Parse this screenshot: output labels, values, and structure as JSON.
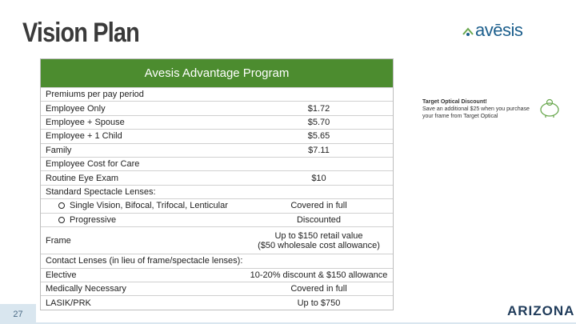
{
  "header": {
    "title": "Vision Plan",
    "logo": "avēsis"
  },
  "table": {
    "title": "Avesis Advantage Program",
    "rows": [
      {
        "label": "Premiums per pay period"
      },
      {
        "label": "Employee Only",
        "value": [
          "$1.72"
        ]
      },
      {
        "label": "Employee + Spouse",
        "value": [
          "$5.70"
        ]
      },
      {
        "label": "Employee + 1 Child",
        "value": [
          "$5.65"
        ]
      },
      {
        "label": "Family",
        "value": [
          "$7.11"
        ]
      },
      {
        "label": "Employee Cost for Care"
      },
      {
        "label": "Routine Eye Exam",
        "value": [
          "$10"
        ]
      },
      {
        "label": "Standard Spectacle Lenses:"
      },
      {
        "label": "Single Vision, Bifocal, Trifocal, Lenticular",
        "value": [
          "Covered in full"
        ],
        "bullet": true
      },
      {
        "label": "Progressive",
        "value": [
          "Discounted"
        ],
        "bullet": true
      },
      {
        "label": "Frame",
        "value": [
          "Up to $150 retail value",
          "($50 wholesale cost allowance)"
        ]
      },
      {
        "label": "Contact Lenses (in lieu of frame/spectacle lenses):"
      },
      {
        "label": "Elective",
        "value": [
          "10-20% discount & $150 allowance"
        ]
      },
      {
        "label": "Medically Necessary",
        "value": [
          "Covered in full"
        ]
      },
      {
        "label": "LASIK/PRK",
        "value": [
          "Up to $750"
        ]
      }
    ]
  },
  "note": {
    "heading": "Target Optical Discount!",
    "text": "Save an additional $25 when you purchase your frame from Target Optical"
  },
  "footer": {
    "page": "27",
    "logo": "ARIZONA"
  }
}
